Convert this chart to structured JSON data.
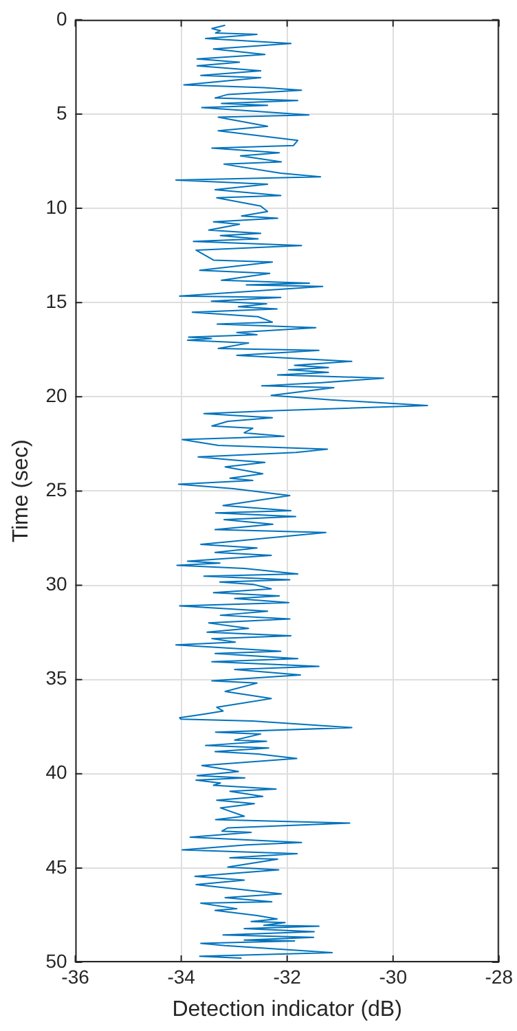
{
  "chart_data": {
    "type": "line",
    "xlabel": "Detection indicator (dB)",
    "ylabel": "Time (sec)",
    "xlim": [
      -36,
      -28
    ],
    "xticks": [
      -36,
      -34,
      -32,
      -30,
      -28
    ],
    "ylim": [
      50,
      0
    ],
    "yticks": [
      0,
      5,
      10,
      15,
      20,
      25,
      30,
      35,
      40,
      45,
      50
    ],
    "grid": true,
    "legend": false,
    "marker": "none",
    "line_style": "solid",
    "series": [
      {
        "color": "#0072bd",
        "x": [
          -33.17,
          -33.42,
          -33.26,
          -33.35,
          -32.57,
          -33.54,
          -31.93,
          -33.39,
          -32.42,
          -33.7,
          -32.9,
          -33.7,
          -32.5,
          -33.63,
          -32.5,
          -33.95,
          -32.44,
          -31.73,
          -33.12,
          -33.36,
          -31.8,
          -33.24,
          -32.37,
          -33.61,
          -31.59,
          -33.3,
          -32.37,
          -33.3,
          -31.8,
          -31.88,
          -33.42,
          -32.15,
          -32.88,
          -32.11,
          -33.19,
          -32.12,
          -31.37,
          -34.1,
          -32.37,
          -33.36,
          -32.12,
          -33.33,
          -32.5,
          -32.37,
          -32.86,
          -32.18,
          -33.39,
          -32.9,
          -33.48,
          -32.5,
          -33.26,
          -32.55,
          -33.77,
          -31.73,
          -33.72,
          -33.39,
          -32.28,
          -33.65,
          -32.33,
          -33.24,
          -31.58,
          -32.77,
          -31.33,
          -34.03,
          -32.12,
          -33.43,
          -32.39,
          -32.92,
          -32.19,
          -33.79,
          -32.55,
          -32.28,
          -33.32,
          -31.46,
          -32.95,
          -32.57,
          -33.86,
          -33.43,
          -33.88,
          -32.73,
          -33.3,
          -31.4,
          -32.95,
          -30.78,
          -31.86,
          -31.22,
          -31.97,
          -31.22,
          -32.18,
          -30.18,
          -31.35,
          -32.48,
          -31.12,
          -32.3,
          -31.13,
          -29.35,
          -32.33,
          -33.57,
          -32.28,
          -33.12,
          -33.42,
          -32.65,
          -32.81,
          -32.06,
          -33.98,
          -33.3,
          -31.24,
          -31.83,
          -33.68,
          -32.99,
          -32.42,
          -33.17,
          -32.46,
          -33.08,
          -32.65,
          -34.05,
          -33.01,
          -31.95,
          -33.21,
          -31.93,
          -33.35,
          -31.84,
          -33.19,
          -32.27,
          -33.36,
          -31.27,
          -33.63,
          -32.57,
          -33.36,
          -32.3,
          -33.88,
          -33.27,
          -34.08,
          -32.81,
          -31.8,
          -33.57,
          -31.95,
          -33.27,
          -32.64,
          -32.3,
          -33.39,
          -32.15,
          -32.99,
          -31.97,
          -34.03,
          -32.37,
          -33.26,
          -31.95,
          -33.48,
          -32.73,
          -33.51,
          -31.93,
          -33.42,
          -32.98,
          -34.1,
          -32.12,
          -33.36,
          -31.8,
          -33.42,
          -31.4,
          -32.99,
          -31.75,
          -33.42,
          -32.57,
          -33.17,
          -32.3,
          -33.33,
          -33.21,
          -33.57,
          -34.03,
          -34.01,
          -32.65,
          -30.78,
          -33.35,
          -32.5,
          -32.99,
          -32.39,
          -33.54,
          -32.35,
          -33.36,
          -32.55,
          -31.82,
          -33.61,
          -33.08,
          -32.92,
          -33.7,
          -32.8,
          -33.72,
          -33.26,
          -33.39,
          -32.21,
          -33.08,
          -32.46,
          -33.33,
          -32.62,
          -33.26,
          -32.81,
          -33.35,
          -30.82,
          -33.12,
          -33.23,
          -32.68,
          -33.83,
          -31.73,
          -32.77,
          -33.98,
          -31.81,
          -33.08,
          -32.18,
          -33.12,
          -32.16,
          -33.74,
          -32.81,
          -33.72,
          -32.11,
          -33.17,
          -32.29,
          -33.63,
          -32.95,
          -33.36,
          -32.57,
          -32.19,
          -32.68,
          -32.04,
          -32.44,
          -31.4,
          -32.81,
          -31.49,
          -33.21,
          -31.5,
          -32.81,
          -31.86,
          -33.63,
          -33.17,
          -31.15,
          -33.65,
          -32.86
        ],
        "values": [
          0.29,
          0.46,
          0.58,
          0.7,
          0.77,
          0.99,
          1.26,
          1.55,
          1.84,
          2.08,
          2.25,
          2.44,
          2.71,
          2.95,
          3.07,
          3.45,
          3.6,
          3.74,
          3.96,
          4.15,
          4.28,
          4.44,
          4.54,
          4.66,
          5.05,
          5.17,
          5.65,
          5.89,
          6.4,
          6.67,
          6.81,
          7.05,
          7.22,
          7.54,
          7.66,
          8.14,
          8.33,
          8.5,
          8.72,
          9.01,
          9.32,
          9.44,
          9.88,
          10.17,
          10.41,
          10.53,
          10.72,
          10.85,
          11.16,
          11.33,
          11.45,
          11.62,
          11.76,
          11.98,
          12.22,
          12.75,
          12.85,
          13.29,
          13.45,
          13.82,
          13.97,
          14.06,
          14.15,
          14.66,
          14.73,
          14.93,
          15.07,
          15.22,
          15.34,
          15.51,
          15.75,
          16.04,
          16.14,
          16.33,
          16.59,
          16.71,
          16.84,
          16.91,
          17.0,
          17.15,
          17.44,
          17.54,
          17.8,
          18.12,
          18.33,
          18.45,
          18.57,
          18.7,
          18.84,
          19.01,
          19.25,
          19.42,
          19.52,
          19.93,
          20.17,
          20.46,
          20.75,
          20.89,
          21.11,
          21.3,
          21.55,
          21.67,
          21.91,
          22.1,
          22.27,
          22.58,
          22.78,
          22.95,
          23.19,
          23.36,
          23.48,
          23.72,
          24.08,
          24.32,
          24.44,
          24.64,
          24.88,
          25.24,
          25.77,
          26.04,
          26.16,
          26.35,
          26.52,
          26.76,
          27.05,
          27.2,
          27.83,
          28.02,
          28.26,
          28.41,
          28.72,
          28.82,
          28.94,
          29.11,
          29.4,
          29.52,
          29.71,
          29.83,
          29.95,
          30.19,
          30.39,
          30.56,
          30.7,
          30.92,
          31.09,
          31.38,
          31.59,
          31.79,
          32.0,
          32.29,
          32.49,
          32.68,
          32.83,
          33.02,
          33.16,
          33.5,
          33.62,
          33.89,
          34.06,
          34.3,
          34.47,
          34.76,
          35.07,
          35.19,
          35.63,
          36.01,
          36.47,
          36.67,
          36.84,
          37.03,
          37.1,
          37.2,
          37.55,
          37.79,
          37.89,
          38.21,
          38.28,
          38.5,
          38.63,
          38.82,
          38.95,
          39.19,
          39.56,
          39.8,
          39.88,
          40.1,
          40.22,
          40.34,
          40.49,
          40.61,
          40.81,
          40.93,
          41.2,
          41.4,
          41.59,
          41.81,
          42.25,
          42.43,
          42.62,
          42.87,
          43.04,
          43.11,
          43.36,
          43.65,
          43.77,
          44.04,
          44.24,
          44.46,
          44.53,
          44.95,
          45.1,
          45.44,
          45.64,
          45.88,
          46.37,
          46.57,
          46.79,
          46.86,
          47.16,
          47.25,
          47.52,
          47.7,
          47.84,
          47.89,
          48.04,
          48.09,
          48.21,
          48.38,
          48.55,
          48.68,
          48.82,
          48.87,
          49.0,
          49.12,
          49.49,
          49.68,
          49.78
        ]
      }
    ]
  }
}
